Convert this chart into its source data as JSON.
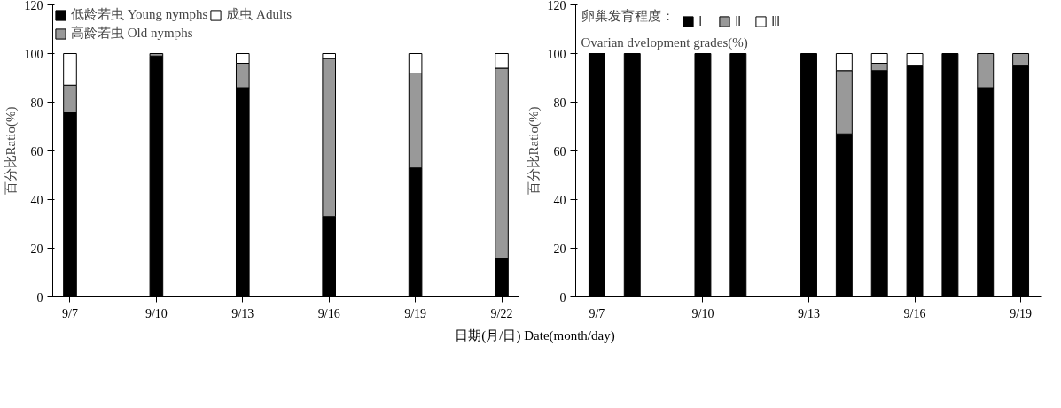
{
  "chart_data": [
    {
      "type": "bar",
      "stacked": true,
      "categories": [
        "9/7",
        null,
        null,
        "9/10",
        null,
        null,
        "9/13",
        null,
        null,
        "9/16",
        null,
        null,
        "9/19",
        null,
        null,
        "9/22"
      ],
      "ylabel": "百分比Ratio(%)",
      "xlabel": "日期(月/日) Date(month/day)",
      "ylim": [
        0,
        120
      ],
      "yticks": [
        0,
        20,
        40,
        60,
        80,
        100,
        120
      ],
      "legend": "top left",
      "grid": false,
      "series": [
        {
          "name": "低龄若虫 Young nymphs",
          "color": "#000000",
          "values": [
            76,
            null,
            null,
            99,
            null,
            null,
            86,
            null,
            null,
            33,
            null,
            null,
            53,
            null,
            null,
            16
          ]
        },
        {
          "name": "高龄若虫 Old nymphs",
          "color": "#999999",
          "values": [
            11,
            null,
            null,
            1,
            null,
            null,
            10,
            null,
            null,
            65,
            null,
            null,
            39,
            null,
            null,
            78
          ]
        },
        {
          "name": "成虫 Adults",
          "color": "#ffffff",
          "values": [
            13,
            null,
            null,
            null,
            null,
            null,
            4,
            null,
            null,
            2,
            null,
            null,
            8,
            null,
            null,
            6
          ]
        }
      ]
    },
    {
      "type": "bar",
      "stacked": true,
      "categories": [
        "9/7",
        null,
        null,
        "9/10",
        null,
        null,
        "9/13",
        null,
        null,
        "9/16",
        null,
        null,
        "9/19"
      ],
      "ylabel": "百分比Ratio(%)",
      "ylim": [
        0,
        120
      ],
      "yticks": [
        0,
        20,
        40,
        60,
        80,
        100,
        120
      ],
      "legend": "top left",
      "legend_title": "卵巢发育程度：",
      "annotations": [
        "Ovarian dvelopment grades(%)"
      ],
      "grid": false,
      "series": [
        {
          "name": "Ⅰ",
          "color": "#000000",
          "values": [
            100,
            100,
            null,
            100,
            100,
            null,
            100,
            67,
            93,
            95,
            100,
            86,
            95
          ]
        },
        {
          "name": "Ⅱ",
          "color": "#999999",
          "values": [
            null,
            null,
            null,
            null,
            null,
            null,
            null,
            26,
            3,
            null,
            null,
            14,
            5
          ]
        },
        {
          "name": "Ⅲ",
          "color": "#ffffff",
          "values": [
            null,
            null,
            null,
            null,
            null,
            null,
            null,
            7,
            4,
            5,
            null,
            null,
            null
          ]
        }
      ]
    }
  ]
}
